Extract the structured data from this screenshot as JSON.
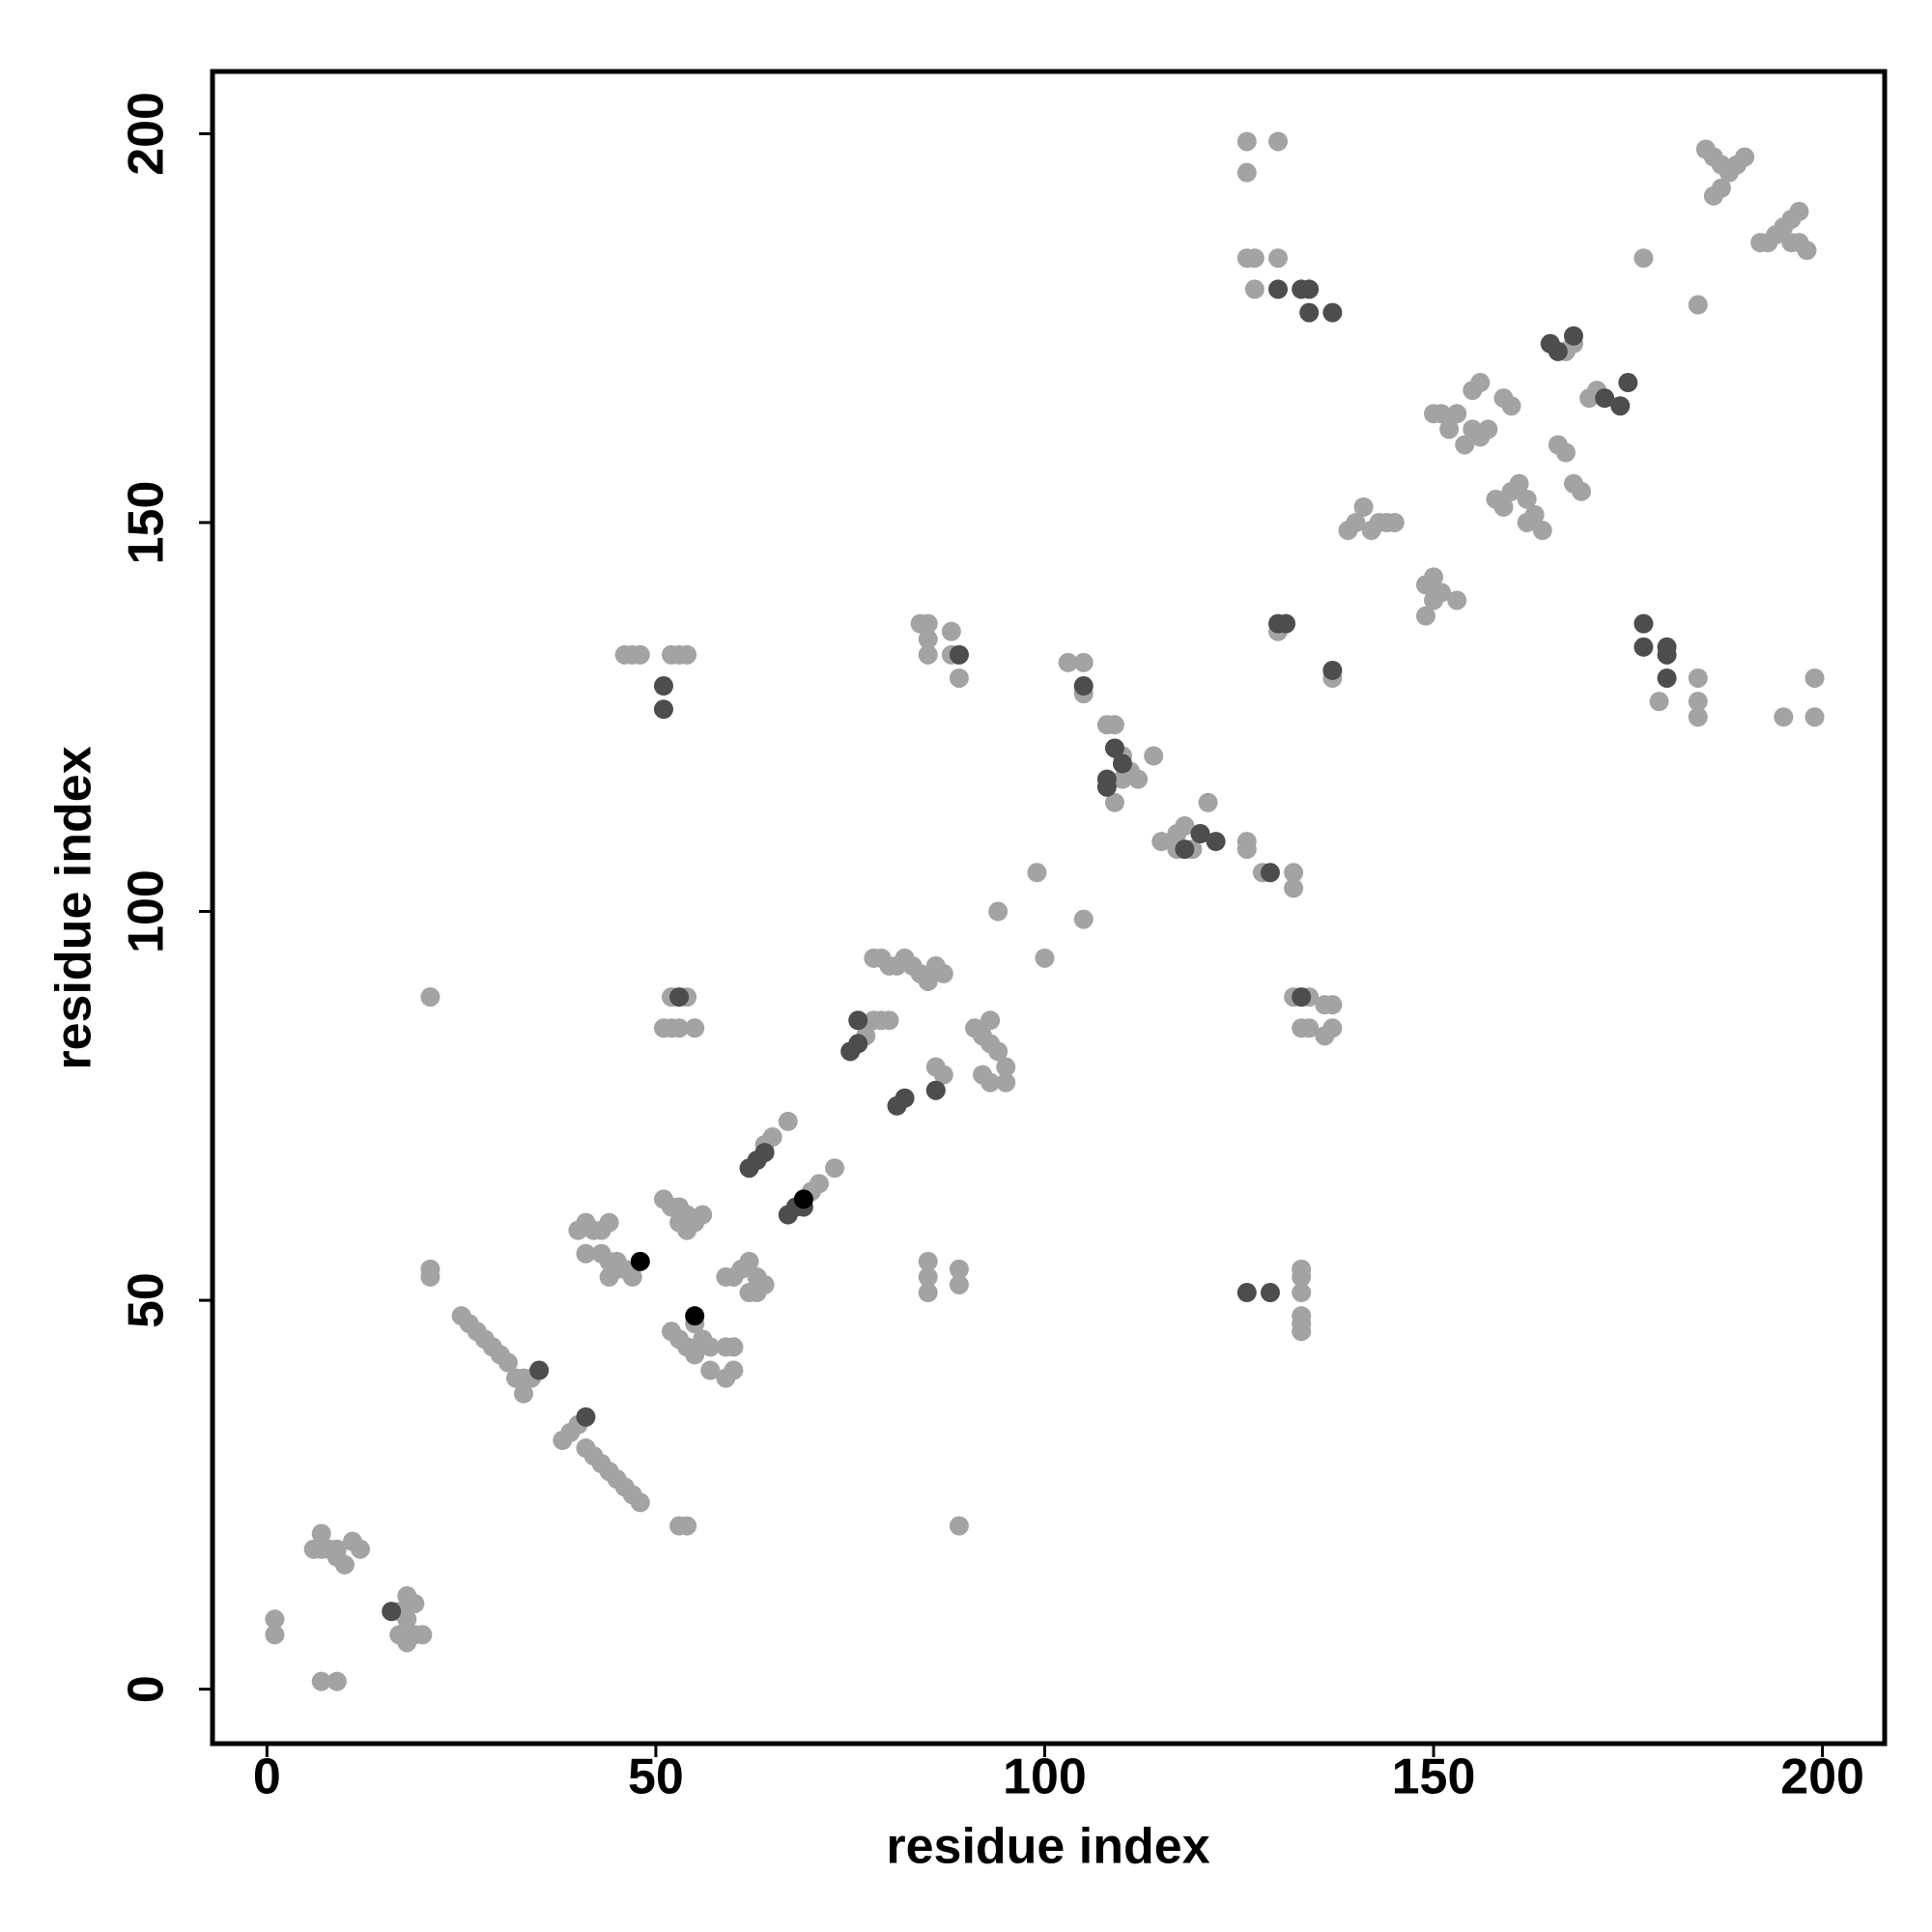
{
  "chart_data": {
    "type": "scatter",
    "x_label": "residue index",
    "y_label": "residue index",
    "xlim": [
      -7,
      208
    ],
    "ylim": [
      -7,
      208
    ],
    "xticks": [
      0,
      50,
      100,
      150,
      200
    ],
    "yticks": [
      0,
      50,
      100,
      150,
      200
    ],
    "series": [
      {
        "color": "#a3a3a3",
        "x": [
          1,
          1,
          7,
          9,
          6,
          7,
          7,
          8,
          9,
          10,
          11,
          12,
          9,
          17,
          18,
          19,
          18,
          17,
          19,
          20,
          18,
          21,
          21,
          21,
          25,
          26,
          27,
          28,
          29,
          30,
          31,
          32,
          33,
          33,
          34,
          38,
          39,
          40,
          41,
          42,
          43,
          44,
          45,
          46,
          47,
          48,
          40,
          41,
          42,
          43,
          44,
          41,
          43,
          44,
          45,
          46,
          47,
          44,
          45,
          46,
          47,
          48,
          52,
          53,
          54,
          53,
          54,
          52,
          54,
          51,
          52,
          53,
          55,
          51,
          52,
          53,
          54,
          55,
          56,
          53,
          54,
          52,
          53,
          54,
          55,
          56,
          57,
          57,
          55,
          59,
          60,
          59,
          60,
          59,
          60,
          61,
          62,
          63,
          64,
          63,
          62,
          64,
          65,
          67,
          70,
          71,
          73,
          77,
          78,
          79,
          80,
          78,
          79,
          80,
          81,
          82,
          83,
          84,
          85,
          86,
          87,
          84,
          85,
          85,
          85,
          88,
          88,
          89,
          89,
          85,
          85,
          85,
          89,
          89,
          86,
          87,
          86,
          89,
          91,
          92,
          93,
          93,
          94,
          95,
          95,
          93,
          92,
          94,
          99,
          100,
          103,
          105,
          105,
          105,
          108,
          109,
          110,
          110,
          111,
          112,
          109,
          114,
          121,
          115,
          117,
          118,
          119,
          120,
          117,
          126,
          126,
          128,
          132,
          132,
          126,
          130,
          126,
          126,
          127,
          130,
          127,
          130,
          137,
          132,
          134,
          136,
          137,
          133,
          134,
          136,
          137,
          133,
          133,
          133,
          133,
          133,
          133,
          139,
          140,
          141,
          142,
          143,
          144,
          145,
          149,
          150,
          150,
          149,
          151,
          153,
          150,
          151,
          152,
          153,
          154,
          155,
          156,
          157,
          155,
          156,
          159,
          160,
          158,
          159,
          160,
          161,
          162,
          162,
          163,
          164,
          166,
          167,
          167,
          168,
          168,
          169,
          170,
          171,
          177,
          179,
          184,
          184,
          184,
          184,
          195,
          199,
          199,
          185,
          186,
          187,
          188,
          189,
          190,
          186,
          187,
          192,
          193,
          194,
          195,
          196,
          197,
          197,
          198,
          196
        ],
        "values": [
          9,
          7,
          1,
          1,
          18,
          18,
          20,
          18,
          17,
          16,
          19,
          18,
          18,
          10,
          12,
          11,
          9,
          7,
          7,
          7,
          6,
          54,
          53,
          89,
          48,
          47,
          46,
          45,
          44,
          43,
          42,
          40,
          38,
          40,
          40,
          32,
          33,
          34,
          31,
          30,
          29,
          28,
          27,
          26,
          25,
          24,
          59,
          60,
          59,
          59,
          60,
          56,
          56,
          55,
          55,
          54,
          53,
          53,
          54,
          133,
          133,
          133,
          133,
          133,
          133,
          21,
          21,
          89,
          89,
          85,
          85,
          85,
          85,
          63,
          62,
          62,
          61,
          60,
          61,
          60,
          59,
          46,
          45,
          44,
          43,
          45,
          44,
          41,
          47,
          44,
          44,
          40,
          41,
          53,
          53,
          54,
          55,
          53,
          52,
          51,
          51,
          70,
          71,
          73,
          64,
          65,
          67,
          84,
          86,
          86,
          86,
          94,
          94,
          93,
          93,
          94,
          93,
          92,
          91,
          93,
          92,
          137,
          137,
          135,
          133,
          136,
          133,
          133,
          130,
          55,
          53,
          51,
          54,
          52,
          80,
          79,
          77,
          21,
          85,
          84,
          86,
          83,
          82,
          80,
          78,
          78,
          79,
          100,
          105,
          94,
          132,
          132,
          128,
          99,
          124,
          124,
          120,
          117,
          118,
          117,
          114,
          120,
          114,
          109,
          110,
          111,
          108,
          110,
          108,
          109,
          108,
          105,
          105,
          103,
          199,
          199,
          195,
          184,
          184,
          184,
          180,
          136,
          130,
          89,
          89,
          88,
          88,
          85,
          85,
          84,
          85,
          54,
          53,
          51,
          48,
          47,
          46,
          149,
          150,
          152,
          149,
          150,
          150,
          150,
          142,
          143,
          140,
          138,
          141,
          140,
          164,
          164,
          162,
          164,
          160,
          162,
          161,
          162,
          167,
          168,
          166,
          165,
          153,
          152,
          154,
          155,
          153,
          150,
          151,
          149,
          160,
          159,
          172,
          173,
          155,
          154,
          166,
          167,
          184,
          127,
          178,
          130,
          127,
          125,
          125,
          130,
          125,
          198,
          197,
          196,
          195,
          196,
          197,
          192,
          193,
          186,
          186,
          187,
          188,
          189,
          190,
          186,
          185,
          186
        ]
      },
      {
        "color": "#4d4d4d",
        "x": [
          16,
          35,
          41,
          51,
          51,
          53,
          62,
          63,
          64,
          67,
          68,
          69,
          75,
          76,
          76,
          81,
          82,
          86,
          89,
          105,
          109,
          110,
          108,
          108,
          118,
          120,
          122,
          129,
          130,
          131,
          130,
          133,
          134,
          134,
          137,
          137,
          126,
          129,
          133,
          165,
          166,
          168,
          172,
          174,
          175,
          177,
          177,
          180,
          180,
          180
        ],
        "values": [
          10,
          41,
          35,
          129,
          126,
          89,
          67,
          68,
          69,
          61,
          62,
          62,
          82,
          83,
          86,
          75,
          76,
          77,
          133,
          129,
          121,
          119,
          117,
          116,
          108,
          110,
          109,
          105,
          137,
          137,
          180,
          180,
          180,
          177,
          177,
          131,
          51,
          51,
          89,
          173,
          172,
          174,
          166,
          165,
          168,
          137,
          134,
          134,
          133,
          130
        ]
      },
      {
        "color": "#000000",
        "x": [
          48,
          55,
          69
        ],
        "values": [
          55,
          48,
          63
        ]
      }
    ]
  }
}
